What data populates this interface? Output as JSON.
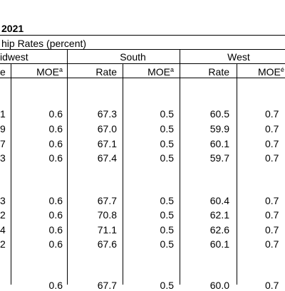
{
  "table": {
    "title_fragment": "2021",
    "section_header": "hip Rates (percent)",
    "regions": [
      "idwest",
      "South",
      "West"
    ],
    "col_headers": {
      "rate_fragment": "e",
      "moe": "MOE",
      "moe_sup": "a",
      "rate": "Rate",
      "moe_west": "MOE",
      "moe_west_sup": "é"
    },
    "rows": [
      {
        "mw_rate": "1",
        "mw_moe": "0.6",
        "s_rate": "67.3",
        "s_moe": "0.5",
        "w_rate": "60.5",
        "w_moe": "0.7"
      },
      {
        "mw_rate": "9",
        "mw_moe": "0.6",
        "s_rate": "67.0",
        "s_moe": "0.5",
        "w_rate": "59.9",
        "w_moe": "0.7"
      },
      {
        "mw_rate": "7",
        "mw_moe": "0.6",
        "s_rate": "67.1",
        "s_moe": "0.5",
        "w_rate": "60.1",
        "w_moe": "0.7"
      },
      {
        "mw_rate": "3",
        "mw_moe": "0.6",
        "s_rate": "67.4",
        "s_moe": "0.5",
        "w_rate": "59.7",
        "w_moe": "0.7"
      },
      {
        "mw_rate": "3",
        "mw_moe": "0.6",
        "s_rate": "67.7",
        "s_moe": "0.5",
        "w_rate": "60.4",
        "w_moe": "0.7"
      },
      {
        "mw_rate": "2",
        "mw_moe": "0.6",
        "s_rate": "70.8",
        "s_moe": "0.5",
        "w_rate": "62.1",
        "w_moe": "0.7"
      },
      {
        "mw_rate": "4",
        "mw_moe": "0.6",
        "s_rate": "71.1",
        "s_moe": "0.5",
        "w_rate": "62.6",
        "w_moe": "0.7"
      },
      {
        "mw_rate": "2",
        "mw_moe": "0.6",
        "s_rate": "67.6",
        "s_moe": "0.5",
        "w_rate": "60.1",
        "w_moe": "0.7"
      }
    ],
    "partial_row": {
      "mw_moe": "0.6",
      "s_rate": "67.7",
      "s_moe": "0.5",
      "w_rate": "60.0",
      "w_moe": "0.7"
    }
  }
}
